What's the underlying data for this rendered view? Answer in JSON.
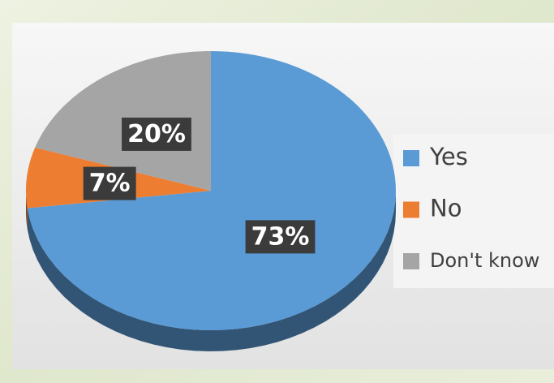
{
  "chart_data": {
    "type": "pie",
    "categories": [
      "Yes",
      "No",
      "Don't know"
    ],
    "values": [
      73,
      7,
      20
    ],
    "value_labels": [
      "73%",
      "7%",
      "20%"
    ],
    "colors": [
      "#5b9bd5",
      "#ed7d31",
      "#a5a5a5"
    ],
    "legend": "right"
  }
}
